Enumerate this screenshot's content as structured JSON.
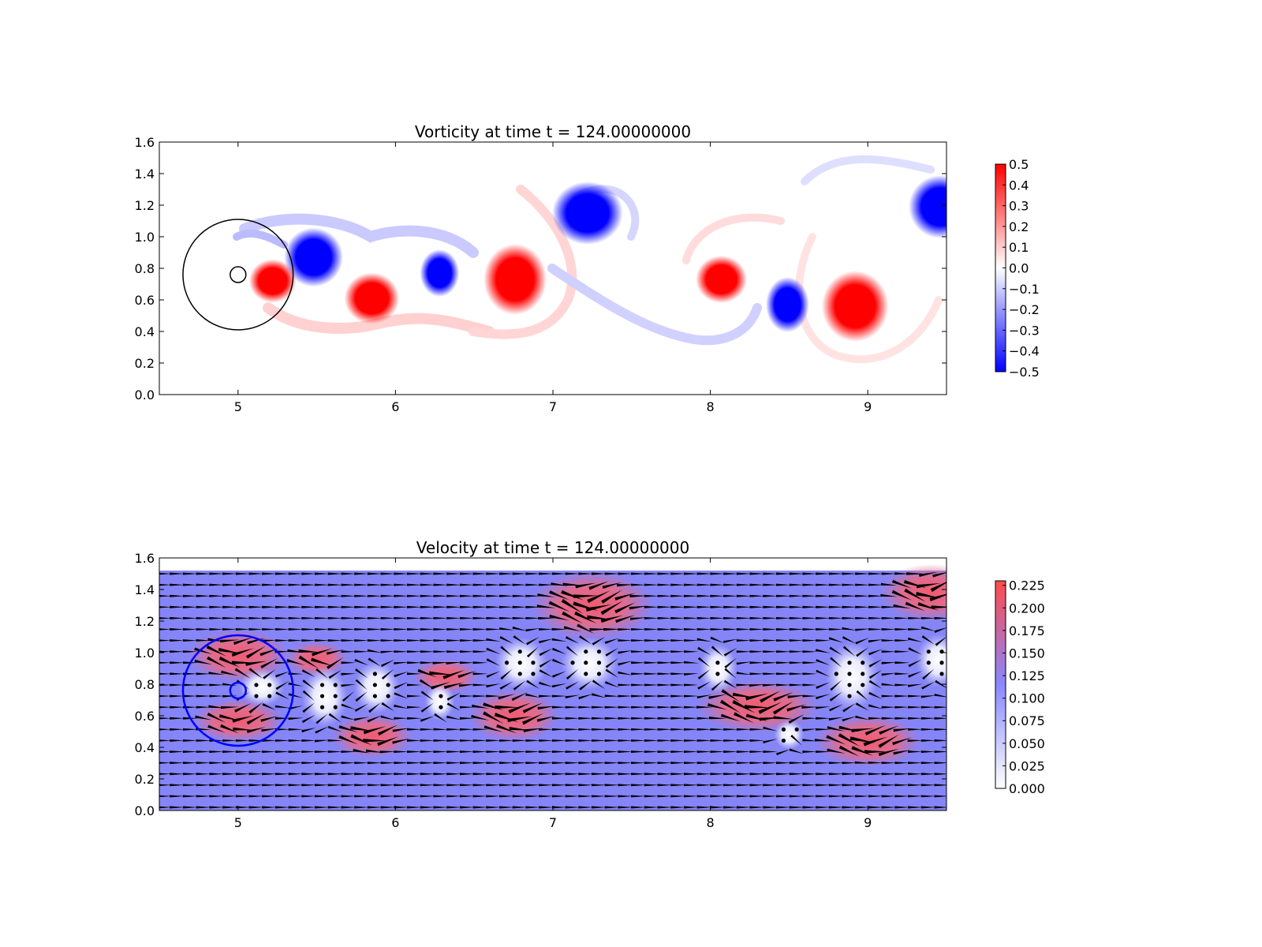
{
  "chart_data": [
    {
      "type": "heatmap",
      "title": "Vorticity at time t =   124.00000000",
      "xlim": [
        4.5,
        9.5
      ],
      "ylim": [
        0.0,
        1.6
      ],
      "x_ticks": [
        5,
        6,
        7,
        8,
        9
      ],
      "y_ticks": [
        0.0,
        0.2,
        0.4,
        0.6,
        0.8,
        1.0,
        1.2,
        1.4,
        1.6
      ],
      "x_tick_labels": [
        "5",
        "6",
        "7",
        "8",
        "9"
      ],
      "y_tick_labels": [
        "0.0",
        "0.2",
        "0.4",
        "0.6",
        "0.8",
        "1.0",
        "1.2",
        "1.4",
        "1.6"
      ],
      "colorbar": {
        "min": -0.5,
        "max": 0.5,
        "ticks": [
          0.5,
          0.4,
          0.3,
          0.2,
          0.1,
          0.0,
          -0.1,
          -0.2,
          -0.3,
          -0.4,
          -0.5
        ],
        "tick_labels": [
          "0.5",
          "0.4",
          "0.3",
          "0.2",
          "0.1",
          "0.0",
          "−0.1",
          "−0.2",
          "−0.3",
          "−0.4",
          "−0.5"
        ],
        "colors": {
          "low": "#0000ff",
          "mid": "#ffffff",
          "high": "#ff0000"
        }
      },
      "vortices": [
        {
          "x": 5.48,
          "y": 0.87,
          "rx": 0.15,
          "ry": 0.15,
          "sign": -1
        },
        {
          "x": 5.22,
          "y": 0.72,
          "rx": 0.12,
          "ry": 0.11,
          "sign": 1
        },
        {
          "x": 5.85,
          "y": 0.61,
          "rx": 0.14,
          "ry": 0.13,
          "sign": 1
        },
        {
          "x": 6.28,
          "y": 0.77,
          "rx": 0.1,
          "ry": 0.12,
          "sign": -1
        },
        {
          "x": 6.76,
          "y": 0.73,
          "rx": 0.16,
          "ry": 0.18,
          "sign": 1
        },
        {
          "x": 7.22,
          "y": 1.15,
          "rx": 0.18,
          "ry": 0.16,
          "sign": -1
        },
        {
          "x": 8.07,
          "y": 0.73,
          "rx": 0.13,
          "ry": 0.12,
          "sign": 1
        },
        {
          "x": 8.49,
          "y": 0.57,
          "rx": 0.11,
          "ry": 0.14,
          "sign": -1
        },
        {
          "x": 8.92,
          "y": 0.56,
          "rx": 0.17,
          "ry": 0.18,
          "sign": 1
        },
        {
          "x": 9.46,
          "y": 1.19,
          "rx": 0.16,
          "ry": 0.16,
          "sign": -1
        }
      ],
      "circles": [
        {
          "x": 5.0,
          "y": 0.76,
          "r": 0.35,
          "color": "#000000"
        },
        {
          "x": 5.0,
          "y": 0.76,
          "r": 0.05,
          "color": "#000000"
        }
      ]
    },
    {
      "type": "heatmap",
      "title": "Velocity at time t =   124.00000000",
      "xlim": [
        4.5,
        9.5
      ],
      "ylim": [
        0.0,
        1.6
      ],
      "data_ymax": 1.52,
      "x_ticks": [
        5,
        6,
        7,
        8,
        9
      ],
      "y_ticks": [
        0.0,
        0.2,
        0.4,
        0.6,
        0.8,
        1.0,
        1.2,
        1.4,
        1.6
      ],
      "x_tick_labels": [
        "5",
        "6",
        "7",
        "8",
        "9"
      ],
      "y_tick_labels": [
        "0.0",
        "0.2",
        "0.4",
        "0.6",
        "0.8",
        "1.0",
        "1.2",
        "1.4",
        "1.6"
      ],
      "colorbar": {
        "min": 0.0,
        "max": 0.23,
        "ticks": [
          0.225,
          0.2,
          0.175,
          0.15,
          0.125,
          0.1,
          0.075,
          0.05,
          0.025,
          0.0
        ],
        "tick_labels": [
          "0.225",
          "0.200",
          "0.175",
          "0.150",
          "0.125",
          "0.100",
          "0.075",
          "0.050",
          "0.025",
          "0.000"
        ],
        "colors": {
          "low": "#ffffff",
          "mid": "#8888ff",
          "high": "#ff4b4b"
        }
      },
      "background_speed": 0.1,
      "fast_regions": [
        {
          "x": 5.0,
          "y": 0.98,
          "rx": 0.25,
          "ry": 0.12,
          "speed": 0.2
        },
        {
          "x": 5.0,
          "y": 0.57,
          "rx": 0.22,
          "ry": 0.1,
          "speed": 0.18
        },
        {
          "x": 5.5,
          "y": 0.96,
          "rx": 0.15,
          "ry": 0.08,
          "speed": 0.2
        },
        {
          "x": 5.85,
          "y": 0.47,
          "rx": 0.2,
          "ry": 0.1,
          "speed": 0.21
        },
        {
          "x": 6.32,
          "y": 0.85,
          "rx": 0.16,
          "ry": 0.08,
          "speed": 0.2
        },
        {
          "x": 6.75,
          "y": 0.6,
          "rx": 0.22,
          "ry": 0.12,
          "speed": 0.22
        },
        {
          "x": 7.25,
          "y": 1.3,
          "rx": 0.3,
          "ry": 0.16,
          "speed": 0.23
        },
        {
          "x": 8.3,
          "y": 0.66,
          "rx": 0.3,
          "ry": 0.12,
          "speed": 0.22
        },
        {
          "x": 9.0,
          "y": 0.44,
          "rx": 0.26,
          "ry": 0.12,
          "speed": 0.22
        },
        {
          "x": 9.4,
          "y": 1.38,
          "rx": 0.25,
          "ry": 0.13,
          "speed": 0.22
        }
      ],
      "slow_regions": [
        {
          "x": 5.15,
          "y": 0.78,
          "rx": 0.12,
          "ry": 0.1
        },
        {
          "x": 5.55,
          "y": 0.72,
          "rx": 0.12,
          "ry": 0.16
        },
        {
          "x": 5.88,
          "y": 0.78,
          "rx": 0.12,
          "ry": 0.14
        },
        {
          "x": 6.28,
          "y": 0.69,
          "rx": 0.08,
          "ry": 0.1
        },
        {
          "x": 6.8,
          "y": 0.93,
          "rx": 0.14,
          "ry": 0.14
        },
        {
          "x": 7.23,
          "y": 0.93,
          "rx": 0.15,
          "ry": 0.14
        },
        {
          "x": 8.05,
          "y": 0.9,
          "rx": 0.1,
          "ry": 0.13
        },
        {
          "x": 8.5,
          "y": 0.48,
          "rx": 0.08,
          "ry": 0.08
        },
        {
          "x": 8.9,
          "y": 0.85,
          "rx": 0.14,
          "ry": 0.18
        },
        {
          "x": 9.45,
          "y": 0.95,
          "rx": 0.12,
          "ry": 0.14
        }
      ],
      "circles": [
        {
          "x": 5.0,
          "y": 0.76,
          "r": 0.35,
          "color": "#0000ff"
        },
        {
          "x": 5.0,
          "y": 0.76,
          "r": 0.05,
          "color": "#0000ff"
        }
      ]
    }
  ]
}
